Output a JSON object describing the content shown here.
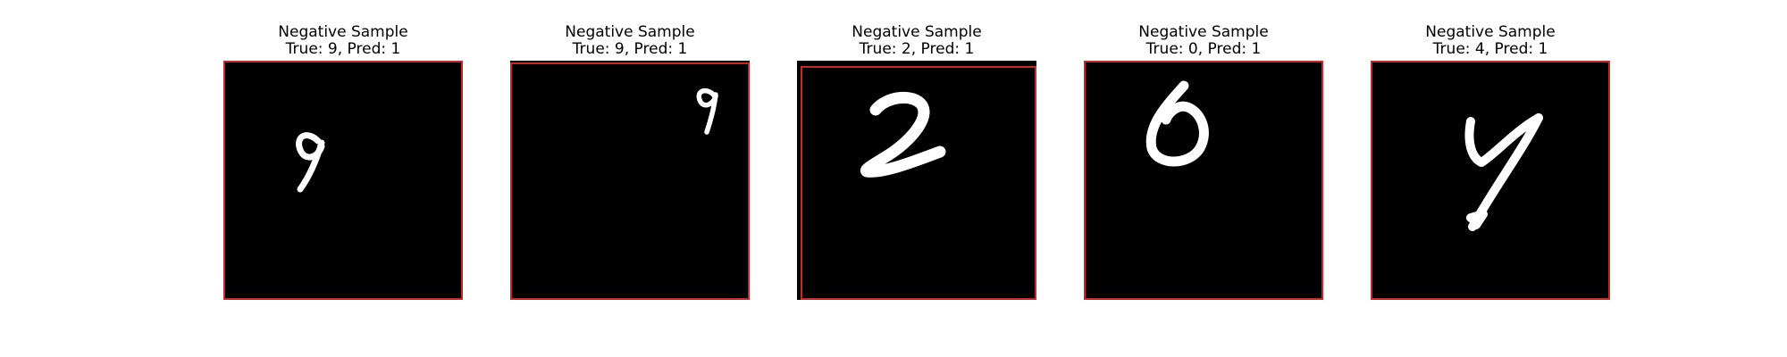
{
  "figure": {
    "background": "#ffffff",
    "frame_color": "#c62828",
    "panels": [
      {
        "title": "Negative Sample",
        "subtitle": "True: 9, Pred: 1",
        "digit_icon": "handwritten-digit-9"
      },
      {
        "title": "Negative Sample",
        "subtitle": "True: 9, Pred: 1",
        "digit_icon": "handwritten-digit-9"
      },
      {
        "title": "Negative Sample",
        "subtitle": "True: 2, Pred: 1",
        "digit_icon": "handwritten-digit-2"
      },
      {
        "title": "Negative Sample",
        "subtitle": "True: 0, Pred: 1",
        "digit_icon": "handwritten-digit-0"
      },
      {
        "title": "Negative Sample",
        "subtitle": "True: 4, Pred: 1",
        "digit_icon": "handwritten-digit-4"
      }
    ]
  }
}
